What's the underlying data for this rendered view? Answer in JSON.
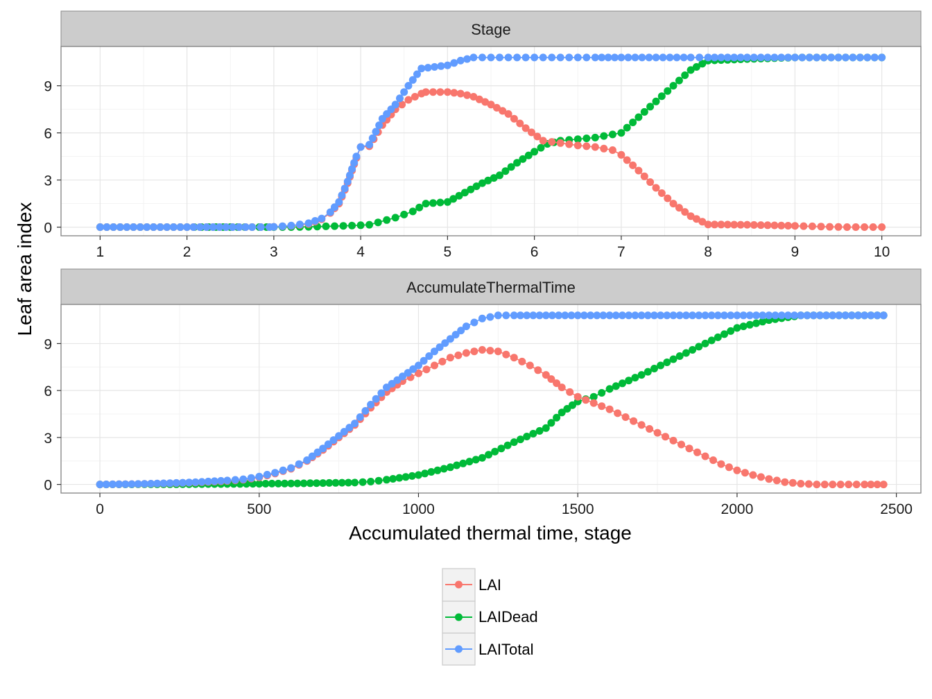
{
  "figure": {
    "ylabel": "Leaf area index",
    "xlabel": "Accumulated thermal time, stage",
    "legend": {
      "position": "bottom",
      "items": [
        {
          "label": "LAI",
          "color": "#F8766D"
        },
        {
          "label": "LAIDead",
          "color": "#00BA38"
        },
        {
          "label": "LAITotal",
          "color": "#619CFF"
        }
      ]
    }
  },
  "chart_data": [
    {
      "type": "line",
      "title": "Stage",
      "xlim": [
        0.55,
        10.45
      ],
      "ylim": [
        -0.55,
        11.5
      ],
      "xticks": [
        1,
        2,
        3,
        4,
        5,
        6,
        7,
        8,
        9,
        10
      ],
      "xtick_labels": [
        "1",
        "2",
        "3",
        "4",
        "5",
        "6",
        "7",
        "8",
        "9",
        "10"
      ],
      "yticks": [
        0,
        3,
        6,
        9
      ],
      "ytick_labels": [
        "0",
        "3",
        "6",
        "9"
      ],
      "grid": true,
      "series": [
        {
          "name": "LAI",
          "x": [
            1,
            2,
            2.15,
            2.3,
            2.45,
            2.6,
            2.75,
            2.95,
            3.0,
            3.2,
            3.4,
            3.55,
            3.65,
            3.75,
            3.85,
            3.95,
            4.0,
            4.1,
            4.25,
            4.4,
            4.55,
            4.7,
            4.75,
            5.0,
            5.15,
            5.3,
            5.5,
            5.7,
            5.9,
            6.1,
            6.3,
            6.5,
            6.7,
            6.9,
            7.0,
            7.2,
            7.4,
            7.6,
            7.8,
            8.0,
            8.45,
            9.0,
            9.2,
            9.4,
            9.6,
            9.8,
            10.0
          ],
          "y": [
            0,
            0,
            0,
            0,
            0,
            0,
            0,
            0,
            0.02,
            0.08,
            0.2,
            0.5,
            0.9,
            1.5,
            2.8,
            4.4,
            5.1,
            5.15,
            6.5,
            7.5,
            8.1,
            8.5,
            8.6,
            8.6,
            8.5,
            8.3,
            7.8,
            7.2,
            6.3,
            5.5,
            5.35,
            5.2,
            5.1,
            4.9,
            4.6,
            3.6,
            2.5,
            1.5,
            0.7,
            0.17,
            0.15,
            0.08,
            0.05,
            0.02,
            0,
            0,
            0
          ]
        },
        {
          "name": "LAIDead",
          "x": [
            1,
            2,
            2.5,
            3.0,
            3.2,
            3.4,
            3.6,
            3.8,
            4.0,
            4.1,
            4.2,
            4.4,
            4.6,
            4.75,
            5.0,
            5.2,
            5.4,
            5.6,
            5.8,
            6.0,
            6.15,
            6.3,
            6.5,
            6.7,
            6.9,
            7.0,
            7.2,
            7.4,
            7.6,
            7.8,
            8.0,
            8.45,
            9.0,
            9.5,
            10.0
          ],
          "y": [
            0,
            0,
            0,
            0,
            0,
            0.02,
            0.05,
            0.08,
            0.12,
            0.15,
            0.3,
            0.6,
            1.0,
            1.5,
            1.6,
            2.2,
            2.8,
            3.3,
            4.1,
            4.8,
            5.3,
            5.5,
            5.6,
            5.7,
            5.9,
            6.0,
            7.0,
            8.0,
            9.0,
            10.0,
            10.6,
            10.7,
            10.8,
            10.8,
            10.8
          ]
        },
        {
          "name": "LAITotal",
          "x": [
            1,
            2,
            2.15,
            2.3,
            2.45,
            2.6,
            2.75,
            2.95,
            3.0,
            3.2,
            3.4,
            3.55,
            3.65,
            3.75,
            3.85,
            3.95,
            4.0,
            4.1,
            4.25,
            4.4,
            4.55,
            4.7,
            5.0,
            5.15,
            5.3,
            5.5,
            5.7,
            5.9,
            6.1,
            6.3,
            6.5,
            6.7,
            7.0,
            7.4,
            7.8,
            8.0,
            8.45,
            9.0,
            9.5,
            10.0
          ],
          "y": [
            0,
            0,
            0,
            0,
            0,
            0,
            0,
            0,
            0.02,
            0.1,
            0.25,
            0.55,
            0.95,
            1.6,
            2.9,
            4.5,
            5.1,
            5.25,
            6.9,
            7.8,
            9.0,
            10.1,
            10.3,
            10.6,
            10.8,
            10.8,
            10.8,
            10.8,
            10.8,
            10.8,
            10.8,
            10.8,
            10.8,
            10.8,
            10.8,
            10.8,
            10.8,
            10.8,
            10.8,
            10.8
          ]
        }
      ]
    },
    {
      "type": "line",
      "title": "AccumulateThermalTime",
      "xlim": [
        -122,
        2577
      ],
      "ylim": [
        -0.55,
        11.5
      ],
      "xticks": [
        0,
        500,
        1000,
        1500,
        2000,
        2500
      ],
      "xtick_labels": [
        "0",
        "500",
        "1000",
        "1500",
        "2000",
        "2500"
      ],
      "yticks": [
        0,
        3,
        6,
        9
      ],
      "ytick_labels": [
        "0",
        "3",
        "6",
        "9"
      ],
      "grid": true,
      "series": [
        {
          "name": "LAI",
          "x": [
            0,
            100,
            200,
            300,
            400,
            450,
            500,
            550,
            600,
            650,
            700,
            750,
            800,
            850,
            900,
            950,
            1000,
            1050,
            1100,
            1150,
            1200,
            1250,
            1300,
            1350,
            1400,
            1450,
            1500,
            1550,
            1600,
            1650,
            1700,
            1750,
            1800,
            1850,
            1900,
            1950,
            2000,
            2050,
            2100,
            2150,
            2200,
            2250,
            2300,
            2350,
            2400,
            2460
          ],
          "y": [
            0,
            0.02,
            0.06,
            0.12,
            0.22,
            0.3,
            0.45,
            0.7,
            1.0,
            1.5,
            2.2,
            3.0,
            3.8,
            4.9,
            5.9,
            6.6,
            7.1,
            7.6,
            8.1,
            8.4,
            8.6,
            8.5,
            8.1,
            7.6,
            7.0,
            6.2,
            5.6,
            5.2,
            4.8,
            4.3,
            3.8,
            3.3,
            2.8,
            2.3,
            1.8,
            1.3,
            0.9,
            0.6,
            0.35,
            0.15,
            0.05,
            0,
            0,
            0,
            0,
            0
          ]
        },
        {
          "name": "LAIDead",
          "x": [
            0,
            200,
            400,
            600,
            800,
            850,
            900,
            1000,
            1100,
            1200,
            1300,
            1400,
            1450,
            1500,
            1550,
            1600,
            1700,
            1800,
            1900,
            2000,
            2100,
            2200,
            2300,
            2400,
            2460
          ],
          "y": [
            0,
            0.01,
            0.03,
            0.06,
            0.12,
            0.18,
            0.3,
            0.6,
            1.1,
            1.7,
            2.7,
            3.6,
            4.6,
            5.3,
            5.6,
            6.1,
            7.0,
            8.0,
            9.0,
            10.0,
            10.5,
            10.8,
            10.8,
            10.8,
            10.8
          ]
        },
        {
          "name": "LAITotal",
          "x": [
            0,
            100,
            200,
            300,
            400,
            450,
            500,
            550,
            600,
            650,
            700,
            750,
            800,
            850,
            900,
            950,
            1000,
            1050,
            1100,
            1150,
            1200,
            1250,
            1300,
            1400,
            1500,
            1600,
            1800,
            2000,
            2200,
            2460
          ],
          "y": [
            0,
            0.02,
            0.07,
            0.14,
            0.25,
            0.33,
            0.5,
            0.75,
            1.05,
            1.55,
            2.3,
            3.1,
            3.9,
            5.1,
            6.2,
            6.9,
            7.6,
            8.5,
            9.3,
            10.1,
            10.6,
            10.8,
            10.8,
            10.8,
            10.8,
            10.8,
            10.8,
            10.8,
            10.8,
            10.8
          ]
        }
      ]
    }
  ]
}
